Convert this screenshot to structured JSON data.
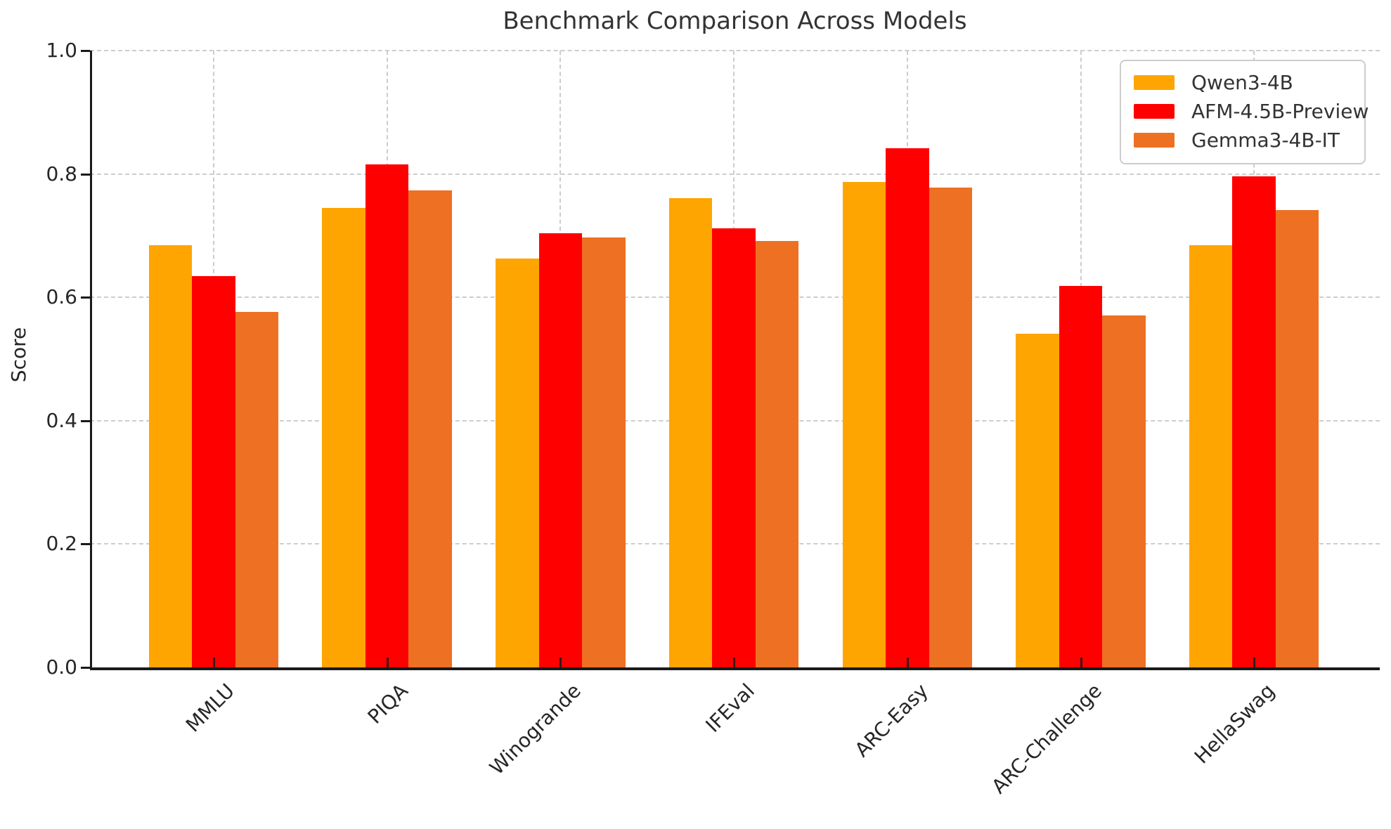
{
  "title": "Benchmark Comparison Across Models",
  "chart_data": {
    "type": "bar",
    "title": "Benchmark Comparison Across Models",
    "xlabel": "",
    "ylabel": "Score",
    "ylim": [
      0.0,
      1.0
    ],
    "yticks": [
      0.0,
      0.2,
      0.4,
      0.6,
      0.8,
      1.0
    ],
    "grid": true,
    "grid_style": "dashed",
    "legend_position": "upper right",
    "categories": [
      "MMLU",
      "PIQA",
      "Winogrande",
      "IFEval",
      "ARC-Easy",
      "ARC-Challenge",
      "HellaSwag"
    ],
    "series": [
      {
        "name": "Qwen3-4B",
        "color": "#FFA502",
        "values": [
          0.684,
          0.745,
          0.663,
          0.761,
          0.787,
          0.541,
          0.685
        ]
      },
      {
        "name": "AFM-4.5B-Preview",
        "color": "#FF0000",
        "values": [
          0.634,
          0.815,
          0.704,
          0.712,
          0.842,
          0.619,
          0.796
        ]
      },
      {
        "name": "Gemma3-4B-IT",
        "color": "#EE7023",
        "values": [
          0.576,
          0.773,
          0.697,
          0.691,
          0.778,
          0.571,
          0.742
        ]
      }
    ]
  },
  "colors": {
    "background": "#ffffff",
    "grid": "#cdcdcd",
    "axis": "#1a1a1a",
    "text": "#262626",
    "title_text": "#333333"
  }
}
